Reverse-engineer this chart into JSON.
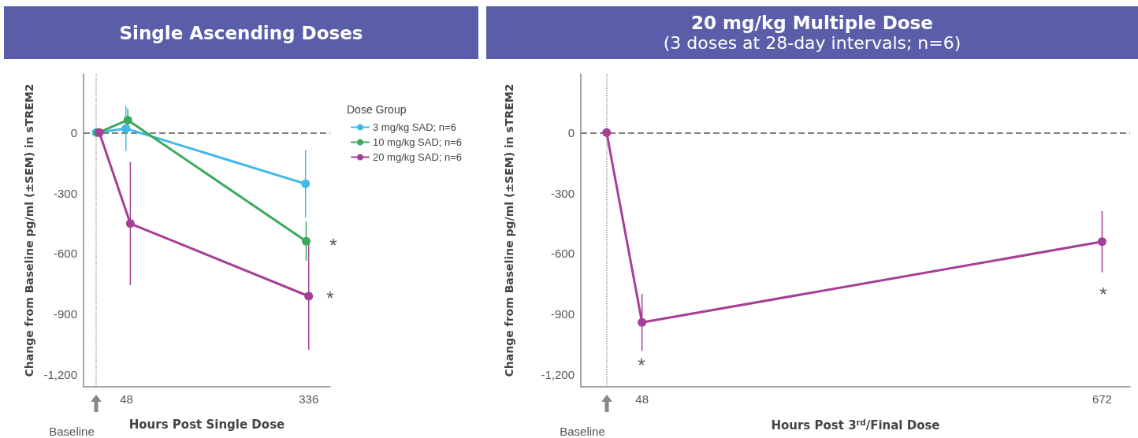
{
  "chart_data": [
    {
      "type": "line",
      "title": "Single Ascending Doses",
      "xlabel": "Hours Post Single Dose",
      "ylabel": "Change from Baseline pg/ml (±SEM) in sTREM2",
      "legend_title": "Dose Group",
      "legend": "right",
      "marker": "circle",
      "line_style": "solid",
      "grid": false,
      "xlim": [
        -20,
        370
      ],
      "xticks": [
        {
          "value": 0,
          "label": null
        },
        48,
        336
      ],
      "ylim": [
        -1260,
        290
      ],
      "yticks": [
        {
          "value": -1200,
          "label": "-1,200"
        },
        -900,
        -600,
        -300,
        0
      ],
      "series": [
        {
          "name": "3 mg/kg SAD; n=6",
          "color": "#3fb9e8",
          "x": [
            0,
            47,
            331
          ],
          "values": [
            0,
            20,
            -254
          ],
          "errors": [
            null,
            112,
            167
          ]
        },
        {
          "name": "10 mg/kg SAD; n=6",
          "color": "#3aaa5c",
          "x": [
            3,
            50,
            332
          ],
          "values": [
            0,
            62,
            -539
          ],
          "errors": [
            null,
            56,
            97
          ]
        },
        {
          "name": "20 mg/kg SAD; n=6",
          "color": "#a63f96",
          "x": [
            5,
            54,
            336
          ],
          "values": [
            0,
            -451,
            -811
          ],
          "errors": [
            null,
            305,
            266
          ]
        }
      ],
      "ref_lines": [
        {
          "axis": "y",
          "value": 0,
          "line_style": "dashed",
          "color": "#808080"
        },
        {
          "axis": "x",
          "value": 0,
          "line_style": "dotted",
          "color": "#a0a0a0"
        }
      ],
      "annotations": [
        "Baseline",
        "*",
        "*"
      ]
    },
    {
      "type": "line",
      "title": "20 mg/kg Multiple Dose",
      "subtitle": "(3 doses at 28-day intervals; n=6)",
      "xlabel": "Hours Post 3$^{rd}$/Final Dose",
      "ylabel": "Change from Baseline pg/ml (±SEM) in sTREM2",
      "marker": "circle",
      "line_style": "solid",
      "grid": false,
      "xlim": [
        -35,
        710
      ],
      "xticks": [
        {
          "value": 0,
          "label": null
        },
        48,
        672
      ],
      "ylim": [
        -1260,
        290
      ],
      "yticks": [
        {
          "value": -1200,
          "label": "-1,200"
        },
        -900,
        -600,
        -300,
        0
      ],
      "series": [
        {
          "color": "#a63f96",
          "x": [
            0,
            48,
            672
          ],
          "values": [
            0,
            -941,
            -541
          ],
          "errors": [
            null,
            141,
            152
          ]
        }
      ],
      "ref_lines": [
        {
          "axis": "y",
          "value": 0,
          "line_style": "dashed",
          "color": "#808080"
        },
        {
          "axis": "x",
          "value": 0,
          "line_style": "dotted",
          "color": "#a0a0a0"
        }
      ],
      "annotations": [
        "Baseline",
        "*",
        "*"
      ]
    }
  ]
}
